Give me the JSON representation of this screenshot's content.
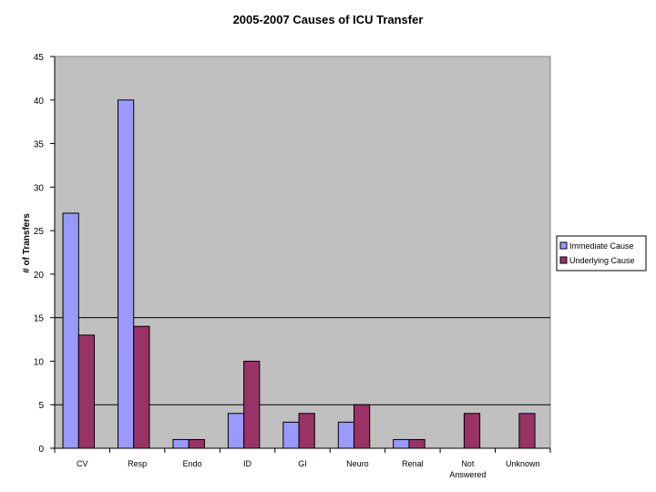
{
  "chart_data": {
    "type": "bar",
    "title": "2005-2007 Causes of ICU Transfer",
    "xlabel": "",
    "ylabel": "# of Transfers",
    "ylim": [
      0,
      45
    ],
    "yticks": [
      0,
      5,
      10,
      15,
      20,
      25,
      30,
      35,
      40,
      45
    ],
    "gridlines_at": [
      5,
      15
    ],
    "grid": true,
    "plot_background": "#c0c0c0",
    "legend_position": "right",
    "categories": [
      [
        "CV"
      ],
      [
        "Resp"
      ],
      [
        "Endo"
      ],
      [
        "ID"
      ],
      [
        "GI"
      ],
      [
        "Neuro"
      ],
      [
        "Renal"
      ],
      [
        "Not",
        "Answered"
      ],
      [
        "Unknown"
      ]
    ],
    "series": [
      {
        "name": "Immediate Cause",
        "color": "#9999ff",
        "values": [
          27,
          40,
          1,
          4,
          3,
          3,
          1,
          0,
          0
        ]
      },
      {
        "name": "Underlying Cause",
        "color": "#993366",
        "values": [
          13,
          14,
          1,
          10,
          4,
          5,
          1,
          4,
          4
        ]
      }
    ]
  }
}
